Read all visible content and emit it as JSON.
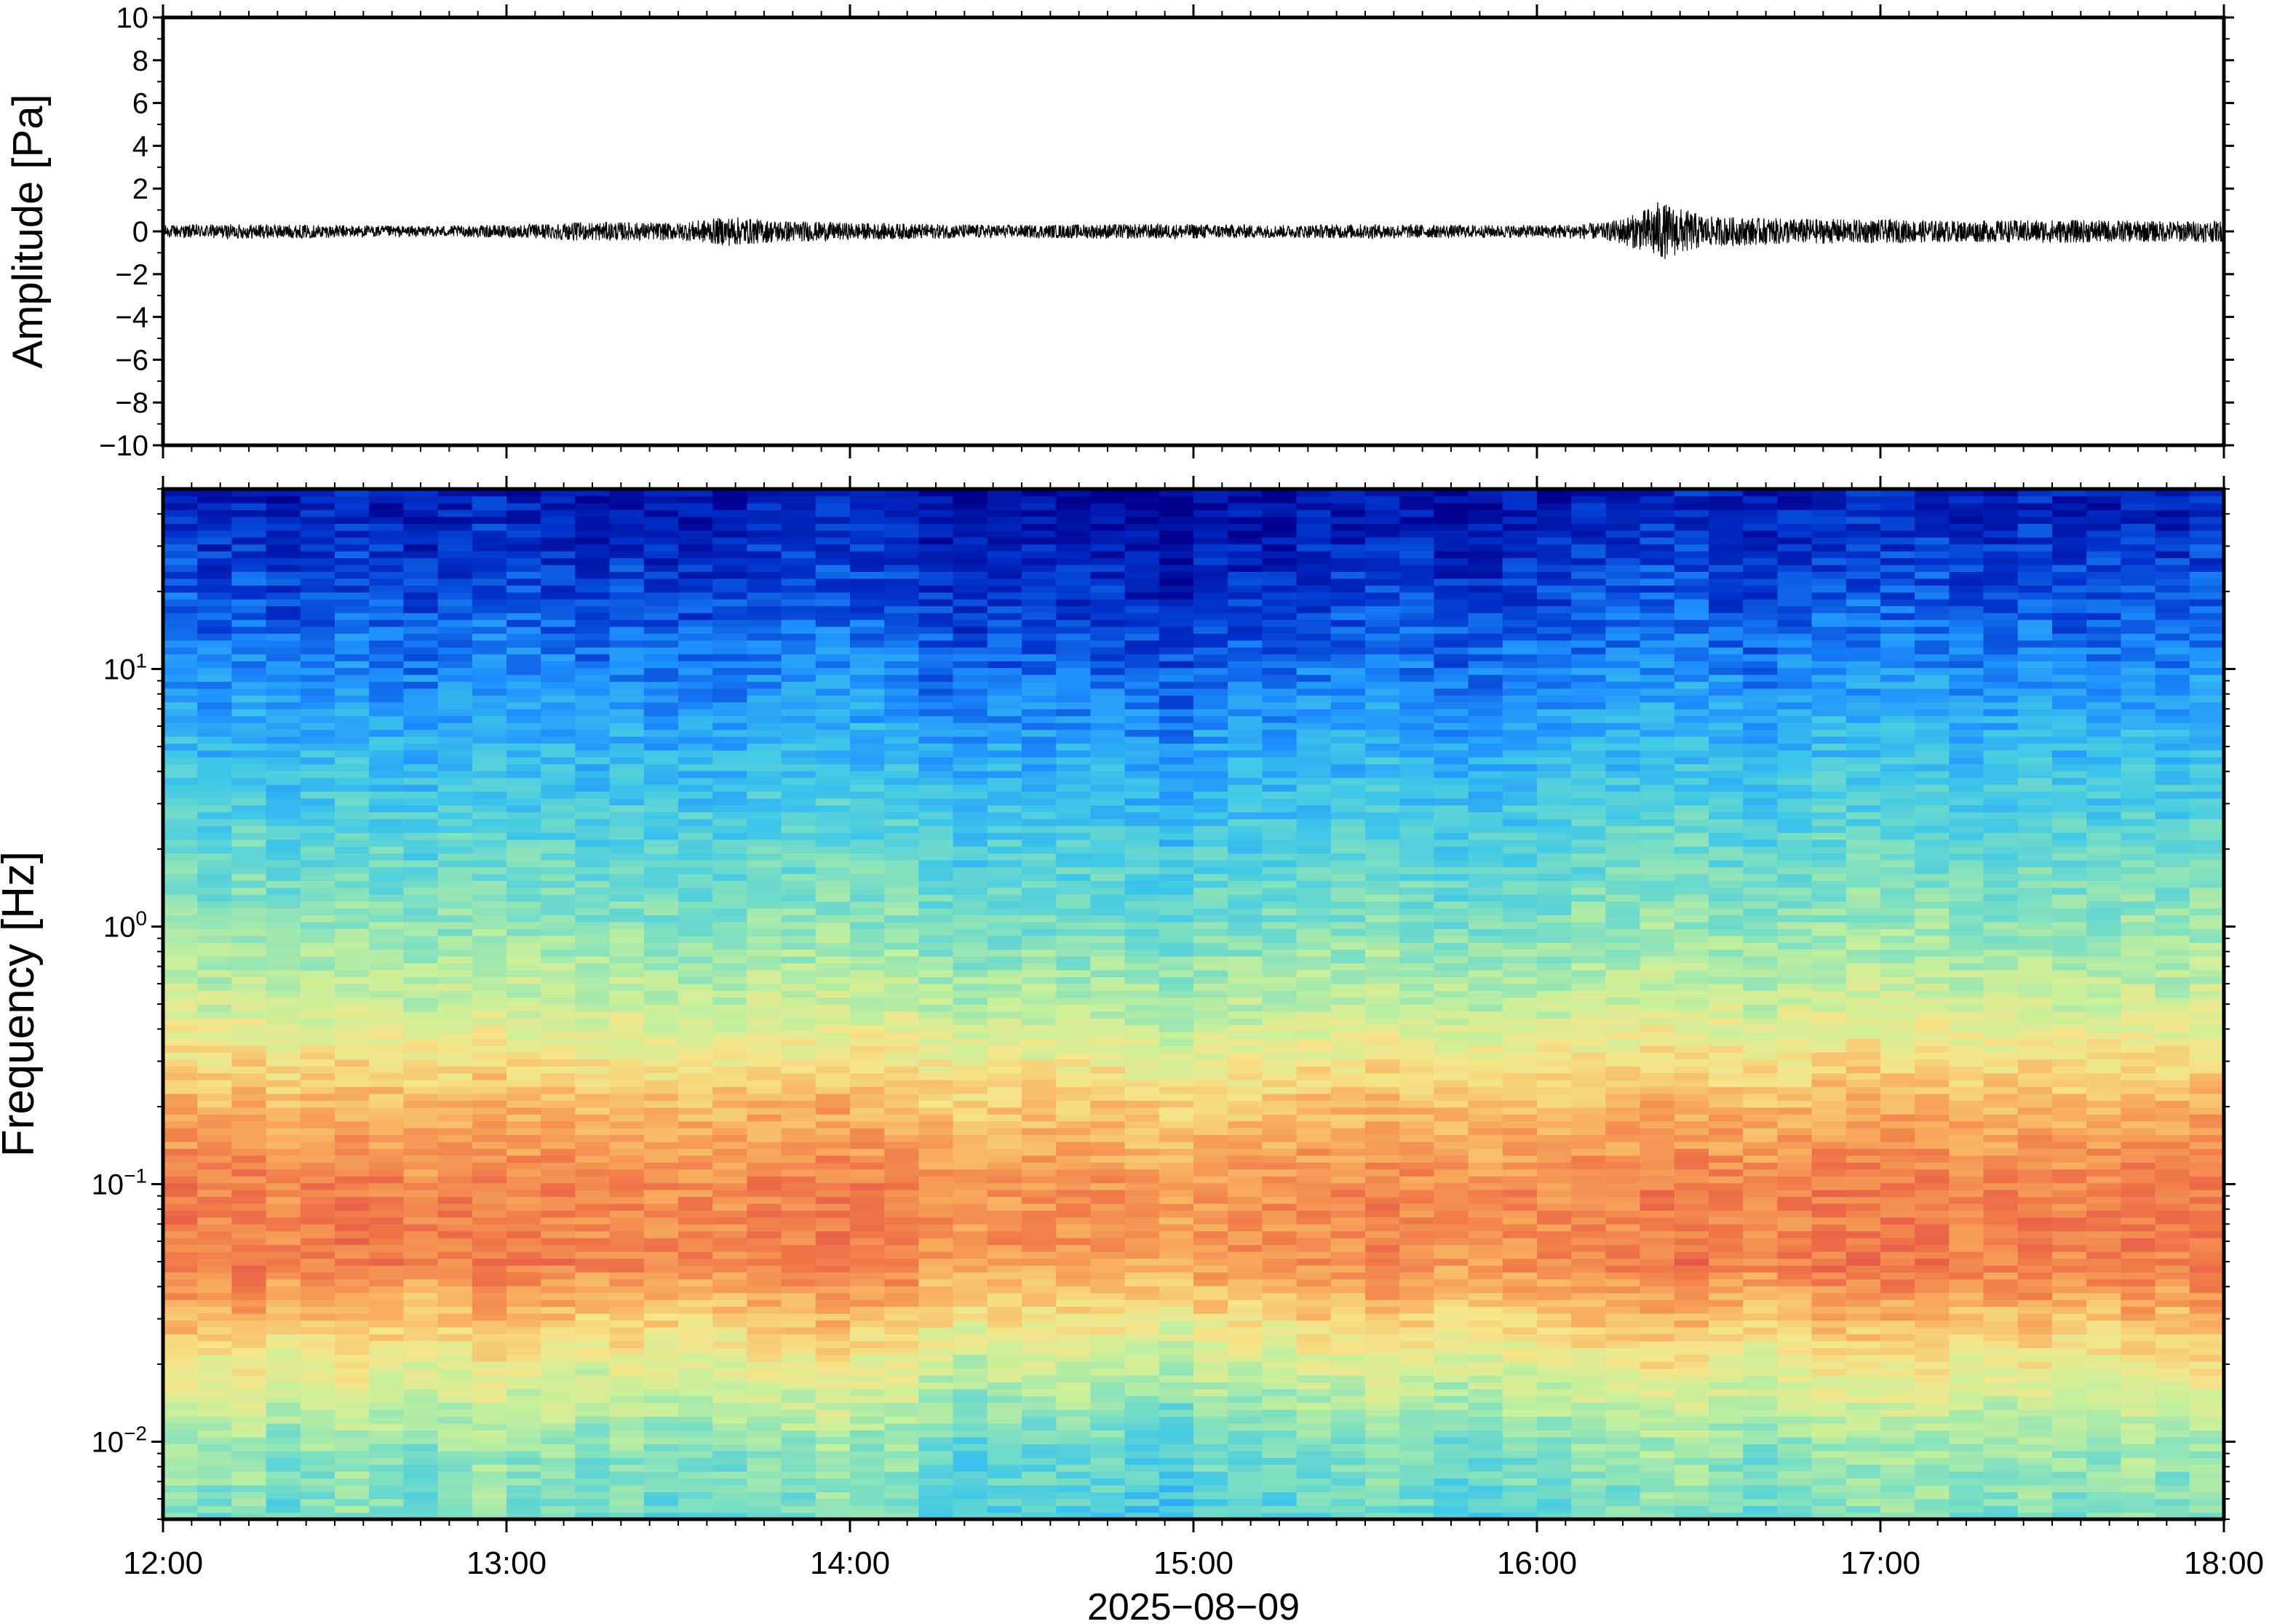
{
  "chart_data": [
    {
      "type": "line",
      "panel": "waveform",
      "ylabel": "Amplitude [Pa]",
      "ylim": [
        -10,
        10
      ],
      "yticks": [
        "10",
        "8",
        "6",
        "4",
        "2",
        "0",
        "−2",
        "−4",
        "−6",
        "−8",
        "−10"
      ],
      "ytick_values": [
        10,
        8,
        6,
        4,
        2,
        0,
        -2,
        -4,
        -6,
        -8,
        -10
      ],
      "xlim": [
        "12:00",
        "18:00"
      ],
      "grid": false,
      "series": [
        {
          "values_description_free": true,
          "x_hours": [
            12.0,
            12.25,
            12.5,
            12.75,
            13.0,
            13.25,
            13.5,
            13.65,
            13.75,
            14.0,
            14.25,
            14.5,
            14.75,
            15.0,
            15.25,
            15.5,
            15.75,
            16.0,
            16.2,
            16.3,
            16.35,
            16.5,
            16.75,
            17.0,
            17.25,
            17.5,
            17.75,
            18.0
          ],
          "envelope_pa": [
            0.3,
            0.35,
            0.3,
            0.25,
            0.3,
            0.45,
            0.4,
            0.7,
            0.55,
            0.4,
            0.35,
            0.3,
            0.35,
            0.35,
            0.3,
            0.35,
            0.3,
            0.3,
            0.4,
            0.9,
            1.4,
            0.7,
            0.6,
            0.55,
            0.5,
            0.55,
            0.5,
            0.5
          ]
        }
      ]
    },
    {
      "type": "heatmap",
      "panel": "spectrogram",
      "ylabel": "Frequency [Hz]",
      "yscale": "log",
      "ylim": [
        0.005,
        50
      ],
      "yticks": [
        {
          "base": "10",
          "exp": "1",
          "value": 10
        },
        {
          "base": "10",
          "exp": "0",
          "value": 1
        },
        {
          "base": "10",
          "exp": "−1",
          "value": 0.1
        },
        {
          "base": "10",
          "exp": "−2",
          "value": 0.01
        }
      ],
      "xlim": [
        "12:00",
        "18:00"
      ],
      "colormap": "jet",
      "colors": [
        "#00008f",
        "#0033cc",
        "#1e90ff",
        "#3fc8e8",
        "#7fe0c0",
        "#c8f09a",
        "#f5e58a",
        "#f8b060",
        "#f07848",
        "#e04848"
      ],
      "time_columns": 60,
      "column_level_offsets": [
        0.1,
        0.05,
        0.1,
        0.0,
        0.05,
        0.1,
        0.05,
        0.0,
        0.05,
        0.1,
        0.05,
        0.05,
        0.0,
        0.05,
        0.0,
        0.0,
        0.0,
        0.05,
        0.05,
        0.1,
        0.05,
        0.05,
        -0.05,
        -0.1,
        -0.05,
        -0.05,
        -0.05,
        -0.05,
        -0.1,
        -0.15,
        -0.05,
        -0.05,
        -0.05,
        0.0,
        0.0,
        0.05,
        0.0,
        -0.05,
        -0.05,
        0.0,
        0.0,
        0.05,
        0.05,
        0.1,
        0.1,
        0.05,
        0.0,
        0.05,
        0.1,
        0.1,
        0.1,
        0.1,
        0.05,
        0.05,
        0.1,
        0.05,
        0.05,
        0.1,
        0.05,
        0.1
      ],
      "spectral_profile": {
        "freq_hz": [
          0.005,
          0.01,
          0.02,
          0.05,
          0.1,
          0.2,
          0.5,
          1,
          2,
          5,
          10,
          20,
          45
        ],
        "level": [
          0.4,
          0.45,
          0.6,
          0.85,
          0.85,
          0.75,
          0.55,
          0.45,
          0.38,
          0.28,
          0.2,
          0.12,
          0.05
        ]
      }
    }
  ],
  "x_axis": {
    "ticks": [
      "12:00",
      "13:00",
      "14:00",
      "15:00",
      "16:00",
      "17:00",
      "18:00"
    ],
    "date_label": "2025−08−09"
  }
}
